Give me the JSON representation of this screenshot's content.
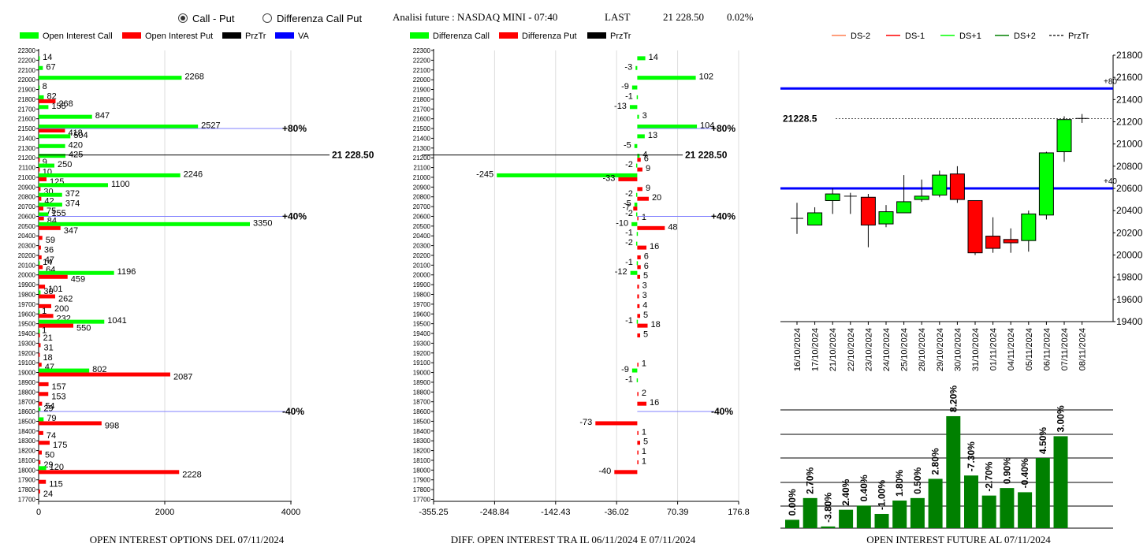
{
  "header": {
    "mode_options": [
      {
        "label": "Call - Put",
        "selected": true
      },
      {
        "label": "Differenza Call Put",
        "selected": false
      }
    ],
    "title": "Analisi future : NASDAQ MINI - 07:40",
    "last_label": "LAST",
    "last_value": "21 228.50",
    "change": "0.02%"
  },
  "colors": {
    "call": "#00ff00",
    "put": "#ff0000",
    "price": "#000000",
    "va": "#0000ff",
    "level_line": "#8080ff",
    "bar_green": "#008000",
    "candle_up": "#00ff00",
    "candle_down": "#ff0000"
  },
  "legends": {
    "oi": [
      "Open Interest Call",
      "Open Interest Put",
      "PrzTr",
      "VA"
    ],
    "diff": [
      "Differenza Call",
      "Differenza Put",
      "PrzTr"
    ],
    "future": [
      "DS-2",
      "DS-1",
      "DS+1",
      "DS+2",
      "PrzTr"
    ]
  },
  "chart_data": [
    {
      "type": "bar",
      "orientation": "horizontal",
      "title": "OPEN INTEREST OPTIONS DEL 07/11/2024",
      "strikes": [
        22300,
        22200,
        22100,
        22000,
        21900,
        21800,
        21700,
        21600,
        21500,
        21400,
        21300,
        21200,
        21100,
        21000,
        20900,
        20800,
        20700,
        20600,
        20500,
        20400,
        20300,
        20200,
        20100,
        20000,
        19900,
        19800,
        19700,
        19600,
        19500,
        19400,
        19300,
        19200,
        19100,
        19000,
        18900,
        18800,
        18700,
        18600,
        18500,
        18400,
        18300,
        18200,
        18100,
        18000,
        17900,
        17800,
        17700
      ],
      "series": [
        {
          "name": "Open Interest Call",
          "values": [
            null,
            14,
            67,
            2268,
            8,
            82,
            155,
            847,
            2527,
            504,
            420,
            425,
            250,
            2246,
            1100,
            372,
            374,
            155,
            3350,
            null,
            null,
            null,
            14,
            1196,
            null,
            30,
            null,
            1,
            1041,
            1,
            null,
            null,
            null,
            802,
            null,
            null,
            null,
            29,
            79,
            null,
            null,
            null,
            null,
            120,
            null,
            null,
            null
          ]
        },
        {
          "name": "Open Interest Put",
          "values": [
            null,
            null,
            null,
            null,
            null,
            268,
            null,
            null,
            418,
            null,
            null,
            9,
            10,
            125,
            30,
            42,
            75,
            84,
            347,
            59,
            36,
            47,
            64,
            459,
            101,
            262,
            200,
            232,
            550,
            21,
            31,
            18,
            47,
            2087,
            157,
            153,
            54,
            null,
            998,
            74,
            175,
            50,
            29,
            2228,
            115,
            24,
            null
          ]
        }
      ],
      "price_line": {
        "label": "21 228.50",
        "value": 21228.5
      },
      "levels": [
        {
          "label": "80%",
          "strike": 21500
        },
        {
          "label": "40%",
          "strike": 20600
        },
        {
          "label": "-40%",
          "strike": 18600
        }
      ],
      "xlim": [
        0,
        4000
      ],
      "xticks": [
        "0",
        "2000",
        "4000"
      ],
      "ylim": [
        17700,
        22300
      ]
    },
    {
      "type": "bar",
      "orientation": "horizontal",
      "title": "DIFF. OPEN INTEREST TRA IL 06/11/2024 E 07/11/2024",
      "strikes": [
        22300,
        22200,
        22100,
        22000,
        21900,
        21800,
        21700,
        21600,
        21500,
        21400,
        21300,
        21200,
        21100,
        21000,
        20900,
        20800,
        20700,
        20600,
        20500,
        20400,
        20300,
        20200,
        20100,
        20000,
        19900,
        19800,
        19700,
        19600,
        19500,
        19400,
        19300,
        19200,
        19100,
        19000,
        18900,
        18800,
        18700,
        18600,
        18500,
        18400,
        18300,
        18200,
        18100,
        18000,
        17900,
        17800,
        17700
      ],
      "series": [
        {
          "name": "Differenza Call",
          "values": [
            null,
            14,
            -3,
            102,
            -9,
            -1,
            -13,
            3,
            104,
            13,
            -5,
            4,
            -2,
            -245,
            null,
            -2,
            -5,
            -2,
            -10,
            -1,
            -2,
            null,
            -1,
            -12,
            null,
            null,
            null,
            null,
            -1,
            null,
            null,
            null,
            null,
            -9,
            -1,
            null,
            null,
            null,
            null,
            null,
            null,
            null,
            null,
            null,
            null,
            null,
            null
          ]
        },
        {
          "name": "Differenza Put",
          "values": [
            null,
            null,
            null,
            null,
            null,
            null,
            null,
            null,
            null,
            null,
            null,
            6,
            9,
            -33,
            9,
            20,
            -7,
            1,
            48,
            null,
            16,
            6,
            6,
            5,
            3,
            3,
            4,
            5,
            18,
            5,
            null,
            null,
            1,
            null,
            null,
            2,
            16,
            null,
            -73,
            1,
            5,
            1,
            1,
            -40,
            null,
            null,
            null
          ]
        }
      ],
      "price_line": {
        "label": "21 228.50",
        "value": 21228.5
      },
      "levels": [
        {
          "label": "80%",
          "strike": 21500
        },
        {
          "label": "40%",
          "strike": 20600
        },
        {
          "label": "-40%",
          "strike": 18600
        }
      ],
      "xlim": [
        -355.25,
        176.8
      ],
      "xticks": [
        "-355.25",
        "-248.84",
        "-142.43",
        "-36.02",
        "70.39",
        "176.8"
      ],
      "ylim": [
        17700,
        22300
      ]
    },
    {
      "type": "candlestick",
      "title": "",
      "x": [
        "16/10/2024",
        "17/10/2024",
        "21/10/2024",
        "22/10/2024",
        "23/10/2024",
        "24/10/2024",
        "25/10/2024",
        "28/10/2024",
        "29/10/2024",
        "30/10/2024",
        "31/10/2024",
        "01/11/2024",
        "04/11/2024",
        "05/11/2024",
        "06/11/2024",
        "07/11/2024",
        "08/11/2024"
      ],
      "ohlc": [
        [
          20330,
          20470,
          20190,
          20320
        ],
        [
          20270,
          20430,
          20270,
          20380
        ],
        [
          20490,
          20600,
          20370,
          20550
        ],
        [
          20530,
          20560,
          20370,
          20530
        ],
        [
          20520,
          20550,
          20070,
          20270
        ],
        [
          20280,
          20450,
          20250,
          20390
        ],
        [
          20380,
          20720,
          20380,
          20480
        ],
        [
          20500,
          20680,
          20480,
          20530
        ],
        [
          20540,
          20760,
          20520,
          20720
        ],
        [
          20730,
          20800,
          20470,
          20500
        ],
        [
          20490,
          20490,
          20000,
          20020
        ],
        [
          20170,
          20340,
          20020,
          20060
        ],
        [
          20140,
          20240,
          20020,
          20110
        ],
        [
          20130,
          20400,
          20030,
          20370
        ],
        [
          20360,
          20930,
          20320,
          20920
        ],
        [
          20930,
          21250,
          20840,
          21220
        ],
        [
          21230,
          21270,
          21190,
          21230
        ]
      ],
      "ylim": [
        19400,
        21800
      ],
      "yticks": [
        "19400",
        "19600",
        "19800",
        "20000",
        "20200",
        "20400",
        "20600",
        "20800",
        "21000",
        "21200",
        "21400",
        "21600",
        "21800"
      ],
      "last_label": "21228.5",
      "last_value": 21228.5,
      "blue_lines": [
        {
          "label": "+80",
          "value": 21500
        },
        {
          "label": "+40",
          "value": 20600
        }
      ]
    },
    {
      "type": "bar",
      "title": "OPEN INTEREST FUTURE AL 07/11/2024",
      "values": [
        0.0,
        2.7,
        -3.8,
        2.4,
        0.4,
        -1.0,
        1.8,
        0.5,
        2.8,
        8.2,
        -7.3,
        -2.7,
        0.9,
        -0.4,
        4.5,
        3.0
      ],
      "labels": [
        "0.00%",
        "2.70%",
        "-3.80%",
        "2.40%",
        "0.40%",
        "-1.00%",
        "1.80%",
        "0.50%",
        "2.80%",
        "8.20%",
        "-7.30%",
        "-2.70%",
        "0.90%",
        "-0.40%",
        "4.50%",
        "3.00%"
      ],
      "heights": [
        1,
        3.6,
        0.2,
        2.2,
        2.7,
        1.7,
        3.3,
        3.6,
        5.9,
        13.4,
        6.3,
        3.9,
        4.8,
        4.3,
        8.4,
        11.0
      ]
    }
  ]
}
